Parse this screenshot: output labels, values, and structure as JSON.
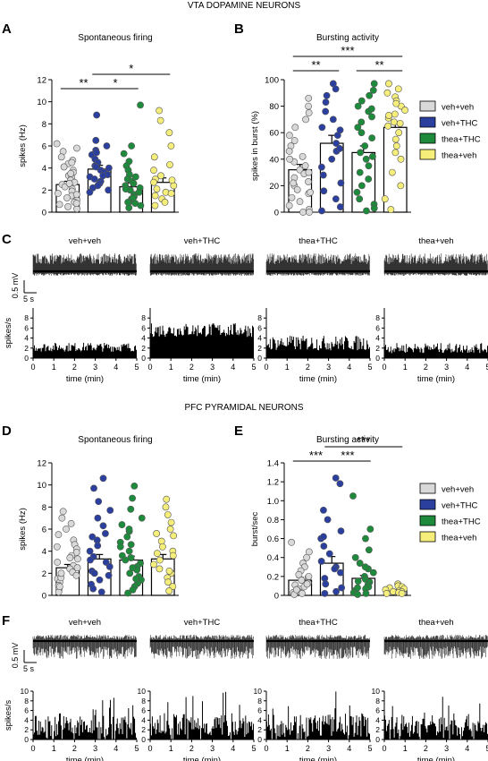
{
  "colors": {
    "veh_veh": "#d9d9d9",
    "veh_thc": "#2b3f9e",
    "thea_thc": "#1e8a3c",
    "thea_veh": "#f5ee7a"
  },
  "sections": {
    "vta_title": "VTA DOPAMINE NEURONS",
    "pfc_title": "PFC PYRAMIDAL NEURONS"
  },
  "panel_letters": {
    "A": "A",
    "B": "B",
    "C": "C",
    "D": "D",
    "E": "E",
    "F": "F"
  },
  "legend_labels": [
    "veh+veh",
    "veh+THC",
    "thea+THC",
    "thea+veh"
  ],
  "trace_labels": {
    "scale_mv": "0.5 mV",
    "scale_s": "5 s",
    "spikes_axis": "spikes/s",
    "time_axis": "time (min)",
    "groups": [
      "veh+veh",
      "veh+THC",
      "thea+THC",
      "thea+veh"
    ],
    "time_ticks": [
      "0",
      "1",
      "2",
      "3",
      "4",
      "5"
    ]
  },
  "chart_data": [
    {
      "id": "A",
      "type": "bar",
      "title": "Spontaneous firing",
      "ylabel": "spikes (Hz)",
      "ylim": [
        0,
        12
      ],
      "yticks": [
        0,
        2,
        4,
        6,
        8,
        10,
        12
      ],
      "categories": [
        "veh+veh",
        "veh+THC",
        "thea+THC",
        "thea+veh"
      ],
      "values": [
        2.5,
        3.9,
        2.3,
        2.7
      ],
      "sem": [
        0.3,
        0.35,
        0.35,
        0.4
      ],
      "points": [
        [
          6.2,
          5.8,
          5.5,
          5.0,
          4.7,
          4.4,
          4.1,
          3.8,
          3.6,
          3.3,
          3.1,
          2.9,
          2.7,
          2.5,
          2.3,
          2.1,
          1.9,
          1.7,
          1.5,
          1.3,
          1.1,
          0.9,
          0.7,
          0.5,
          0.3,
          4.5,
          3.5,
          2.6,
          1.6,
          0.8
        ],
        [
          8.8,
          6.5,
          6.0,
          5.6,
          5.2,
          4.8,
          4.5,
          4.2,
          4.0,
          3.8,
          3.6,
          3.4,
          3.2,
          3.0,
          2.8,
          2.6,
          2.4,
          2.2,
          2.0,
          1.8,
          5.4,
          4.1,
          3.3
        ],
        [
          9.7,
          6.0,
          5.3,
          4.6,
          4.2,
          3.8,
          3.4,
          3.0,
          2.8,
          2.6,
          2.4,
          2.2,
          2.0,
          1.8,
          1.6,
          1.4,
          1.2,
          1.0,
          0.8,
          0.6,
          0.4,
          3.2,
          2.1,
          1.3,
          0.9
        ],
        [
          9.2,
          8.3,
          7.2,
          6.0,
          5.0,
          4.3,
          3.8,
          3.3,
          3.0,
          2.7,
          2.4,
          2.1,
          1.8,
          1.5,
          1.2,
          0.9,
          0.6,
          2.9,
          1.7
        ]
      ],
      "significance": [
        {
          "from": 0,
          "to": 1,
          "label": "**"
        },
        {
          "from": 1,
          "to": 2,
          "label": "*"
        },
        {
          "from": 1,
          "to": 3,
          "label": "*"
        }
      ]
    },
    {
      "id": "B",
      "type": "bar",
      "title": "Bursting activity",
      "ylabel": "spikes in burst (%)",
      "ylim": [
        0,
        100
      ],
      "yticks": [
        0,
        20,
        40,
        60,
        80,
        100
      ],
      "categories": [
        "veh+veh",
        "veh+THC",
        "thea+THC",
        "thea+veh"
      ],
      "values": [
        32,
        52,
        45,
        64
      ],
      "sem": [
        4,
        6,
        5,
        4
      ],
      "points": [
        [
          86,
          80,
          75,
          70,
          64,
          58,
          54,
          50,
          46,
          42,
          38,
          35,
          32,
          29,
          26,
          23,
          20,
          17,
          14,
          11,
          8,
          5,
          2,
          0,
          0,
          40,
          30,
          22,
          15
        ],
        [
          97,
          93,
          88,
          83,
          76,
          70,
          64,
          58,
          52,
          46,
          40,
          34,
          28,
          22,
          16,
          10,
          4,
          1,
          62,
          48
        ],
        [
          97,
          92,
          88,
          84,
          80,
          76,
          72,
          68,
          64,
          60,
          56,
          50,
          45,
          40,
          35,
          30,
          25,
          20,
          15,
          10,
          6,
          3,
          1,
          78,
          42
        ],
        [
          97,
          93,
          90,
          87,
          84,
          80,
          77,
          74,
          71,
          68,
          65,
          60,
          55,
          50,
          45,
          40,
          30,
          20,
          10,
          2,
          82,
          73,
          67
        ]
      ],
      "significance": [
        {
          "from": 0,
          "to": 1,
          "label": "**"
        },
        {
          "from": 0,
          "to": 3,
          "label": "***"
        },
        {
          "from": 2,
          "to": 3,
          "label": "**"
        }
      ]
    },
    {
      "id": "D",
      "type": "bar",
      "title": "Spontaneous firing",
      "ylabel": "spikes (Hz)",
      "ylim": [
        0,
        12
      ],
      "yticks": [
        0,
        2,
        4,
        6,
        8,
        10,
        12
      ],
      "categories": [
        "veh+veh",
        "veh+THC",
        "thea+THC",
        "thea+veh"
      ],
      "values": [
        2.5,
        3.3,
        3.2,
        3.3
      ],
      "sem": [
        0.3,
        0.4,
        0.35,
        0.4
      ],
      "points": [
        [
          7.6,
          7.0,
          6.5,
          6.0,
          5.5,
          5.0,
          4.6,
          4.2,
          3.9,
          3.6,
          3.3,
          3.0,
          2.7,
          2.4,
          2.1,
          1.8,
          1.5,
          1.2,
          0.9,
          0.6,
          0.3,
          4.4,
          3.4,
          2.5,
          1.6,
          0.8,
          2.0
        ],
        [
          10.6,
          9.7,
          8.5,
          7.7,
          7.0,
          6.3,
          5.6,
          5.0,
          4.5,
          4.0,
          3.5,
          3.0,
          2.6,
          2.2,
          1.8,
          1.4,
          1.0,
          0.6,
          0.3,
          5.3,
          3.2,
          2.0
        ],
        [
          9.9,
          8.8,
          7.8,
          7.0,
          6.4,
          5.8,
          5.3,
          4.8,
          4.4,
          4.0,
          3.6,
          3.2,
          2.9,
          2.6,
          2.3,
          2.0,
          1.7,
          1.4,
          1.1,
          0.8,
          0.5,
          0.2,
          6.0,
          4.6,
          3.4,
          2.5,
          1.5
        ],
        [
          8.7,
          8.0,
          7.3,
          6.6,
          6.0,
          5.4,
          4.9,
          4.4,
          4.0,
          3.6,
          3.2,
          2.8,
          2.4,
          2.0,
          1.6,
          1.2,
          0.8,
          0.4,
          5.6,
          3.8,
          2.2
        ]
      ],
      "significance": []
    },
    {
      "id": "E",
      "type": "bar",
      "title": "Bursting activity",
      "ylabel": "burst/sec",
      "ylim": [
        0,
        1.4
      ],
      "yticks": [
        0,
        0.2,
        0.4,
        0.6,
        0.8,
        1.0,
        1.2,
        1.4
      ],
      "ytick_labels": [
        "0",
        "0.2",
        "0.4",
        "0.6",
        "0.8",
        "1.0",
        "1.2",
        "1.4"
      ],
      "categories": [
        "veh+veh",
        "veh+THC",
        "thea+THC",
        "thea+veh"
      ],
      "values": [
        0.16,
        0.34,
        0.18,
        0.05
      ],
      "sem": [
        0.03,
        0.07,
        0.03,
        0.01
      ],
      "points": [
        [
          0.56,
          0.46,
          0.4,
          0.34,
          0.3,
          0.26,
          0.22,
          0.19,
          0.16,
          0.13,
          0.11,
          0.09,
          0.07,
          0.05,
          0.03,
          0.02,
          0.01,
          0.2,
          0.12,
          0.06
        ],
        [
          1.24,
          1.18,
          0.9,
          0.8,
          0.68,
          0.6,
          0.52,
          0.44,
          0.36,
          0.3,
          0.24,
          0.18,
          0.12,
          0.08,
          0.04,
          0.02,
          0.62,
          0.28
        ],
        [
          1.05,
          0.7,
          0.6,
          0.48,
          0.4,
          0.34,
          0.28,
          0.24,
          0.2,
          0.17,
          0.14,
          0.11,
          0.09,
          0.07,
          0.05,
          0.03,
          0.02,
          0.01,
          0.3,
          0.15,
          0.08
        ],
        [
          0.12,
          0.1,
          0.09,
          0.08,
          0.07,
          0.06,
          0.05,
          0.04,
          0.04,
          0.03,
          0.02,
          0.02
        ]
      ],
      "significance": [
        {
          "from": 0,
          "to": 1,
          "label": "***"
        },
        {
          "from": 1,
          "to": 2,
          "label": "***"
        },
        {
          "from": 1,
          "to": 3,
          "label": "***"
        }
      ]
    }
  ],
  "histograms": {
    "C": {
      "ymax": 10,
      "yticks": [
        0,
        2,
        4,
        6,
        8
      ],
      "levels": [
        2.2,
        5.6,
        3.0,
        2.0
      ],
      "noise": [
        0.9,
        1.4,
        1.5,
        1.0
      ]
    },
    "F": {
      "ymax": 10,
      "yticks": [
        0,
        2,
        4,
        6,
        8,
        10
      ],
      "levels": [
        2.6,
        3.0,
        3.0,
        2.8
      ],
      "noise": [
        4.5,
        4.5,
        4.5,
        4.5
      ]
    }
  }
}
